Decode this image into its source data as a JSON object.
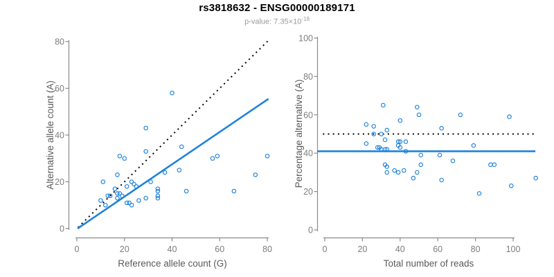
{
  "header": {
    "title": "rs3818632 - ENSG00000189171",
    "subtitle_prefix": "p-value: 7.35×10",
    "subtitle_exponent": "-18"
  },
  "colors": {
    "points": "#1E82DC",
    "solid_line": "#1E82DC",
    "dotted_line": "#000000",
    "axis_line": "#8a8a8a",
    "tick_label": "#7d7d7d",
    "axis_title": "#5a5a5a",
    "title": "#000000",
    "subtitle": "#9a9a9a"
  },
  "chart_data": [
    {
      "type": "scatter",
      "panel": "left",
      "title": "",
      "xlabel": "Reference allele count (G)",
      "ylabel": "Alternative allele count (A)",
      "xlim": [
        0,
        81
      ],
      "ylim": [
        0,
        81
      ],
      "xticks": [
        0,
        20,
        40,
        60,
        80
      ],
      "yticks": [
        0,
        20,
        40,
        60,
        80
      ],
      "grid": false,
      "legend": "none",
      "points": [
        [
          40,
          58
        ],
        [
          29,
          43
        ],
        [
          44,
          35
        ],
        [
          29,
          33
        ],
        [
          18,
          31
        ],
        [
          20,
          30
        ],
        [
          57,
          30
        ],
        [
          59,
          31
        ],
        [
          80,
          31
        ],
        [
          43,
          25
        ],
        [
          37,
          24
        ],
        [
          17,
          23
        ],
        [
          75,
          23
        ],
        [
          11,
          20
        ],
        [
          23,
          20
        ],
        [
          31,
          20
        ],
        [
          24,
          19
        ],
        [
          21,
          18
        ],
        [
          25,
          18
        ],
        [
          16,
          17
        ],
        [
          34,
          17
        ],
        [
          34,
          16
        ],
        [
          46,
          16
        ],
        [
          66,
          16
        ],
        [
          17,
          15
        ],
        [
          18,
          15
        ],
        [
          34,
          14
        ],
        [
          13,
          14
        ],
        [
          14,
          14
        ],
        [
          19,
          14
        ],
        [
          17,
          13
        ],
        [
          34,
          13
        ],
        [
          29,
          13
        ],
        [
          10,
          12
        ],
        [
          26,
          12
        ],
        [
          21,
          11
        ],
        [
          22,
          11
        ],
        [
          12,
          10
        ],
        [
          23,
          10
        ]
      ],
      "lines": [
        {
          "name": "identity-line",
          "style": "dotted",
          "color": "#000000",
          "x1": 0.5,
          "y1": 0.5,
          "x2": 81,
          "y2": 81
        },
        {
          "name": "regression-line",
          "style": "solid",
          "color": "#1E82DC",
          "x1": 0.3,
          "y1": 0,
          "x2": 80.5,
          "y2": 55.5
        }
      ]
    },
    {
      "type": "scatter",
      "panel": "right",
      "title": "",
      "xlabel": "Total number of reads",
      "ylabel": "Percentage alternative (A)",
      "xlim": [
        0,
        113
      ],
      "ylim": [
        0,
        100
      ],
      "xticks": [
        0,
        20,
        40,
        60,
        80,
        100
      ],
      "yticks": [
        0,
        20,
        40,
        60,
        80,
        100
      ],
      "grid": false,
      "legend": "none",
      "points": [
        [
          31,
          65
        ],
        [
          49,
          64
        ],
        [
          50,
          60
        ],
        [
          72,
          60
        ],
        [
          98,
          59
        ],
        [
          40,
          57
        ],
        [
          22,
          55
        ],
        [
          26,
          54
        ],
        [
          62,
          53
        ],
        [
          33,
          52
        ],
        [
          30,
          50
        ],
        [
          26,
          50
        ],
        [
          32,
          47
        ],
        [
          39,
          46
        ],
        [
          43,
          46
        ],
        [
          40,
          46
        ],
        [
          22,
          45
        ],
        [
          39,
          44
        ],
        [
          79,
          44
        ],
        [
          40,
          43
        ],
        [
          28,
          43
        ],
        [
          29,
          43
        ],
        [
          30,
          42
        ],
        [
          32,
          42
        ],
        [
          33,
          42
        ],
        [
          43,
          41
        ],
        [
          51,
          39
        ],
        [
          61,
          39
        ],
        [
          68,
          36
        ],
        [
          88,
          34
        ],
        [
          90,
          34
        ],
        [
          51,
          34
        ],
        [
          32,
          34
        ],
        [
          33,
          33
        ],
        [
          37,
          31
        ],
        [
          42,
          31
        ],
        [
          39,
          30
        ],
        [
          49,
          30
        ],
        [
          33,
          30
        ],
        [
          47,
          27
        ],
        [
          112,
          27
        ],
        [
          62,
          26
        ],
        [
          99,
          23
        ],
        [
          82,
          19
        ]
      ],
      "lines": [
        {
          "name": "expected-50pct-line",
          "style": "dotted",
          "color": "#000000",
          "x1": -1,
          "y1": 50,
          "x2": 111,
          "y2": 50
        },
        {
          "name": "mean-pct-line",
          "style": "solid",
          "color": "#1E82DC",
          "x1": -4,
          "y1": 41,
          "x2": 111.8,
          "y2": 41
        }
      ]
    }
  ]
}
